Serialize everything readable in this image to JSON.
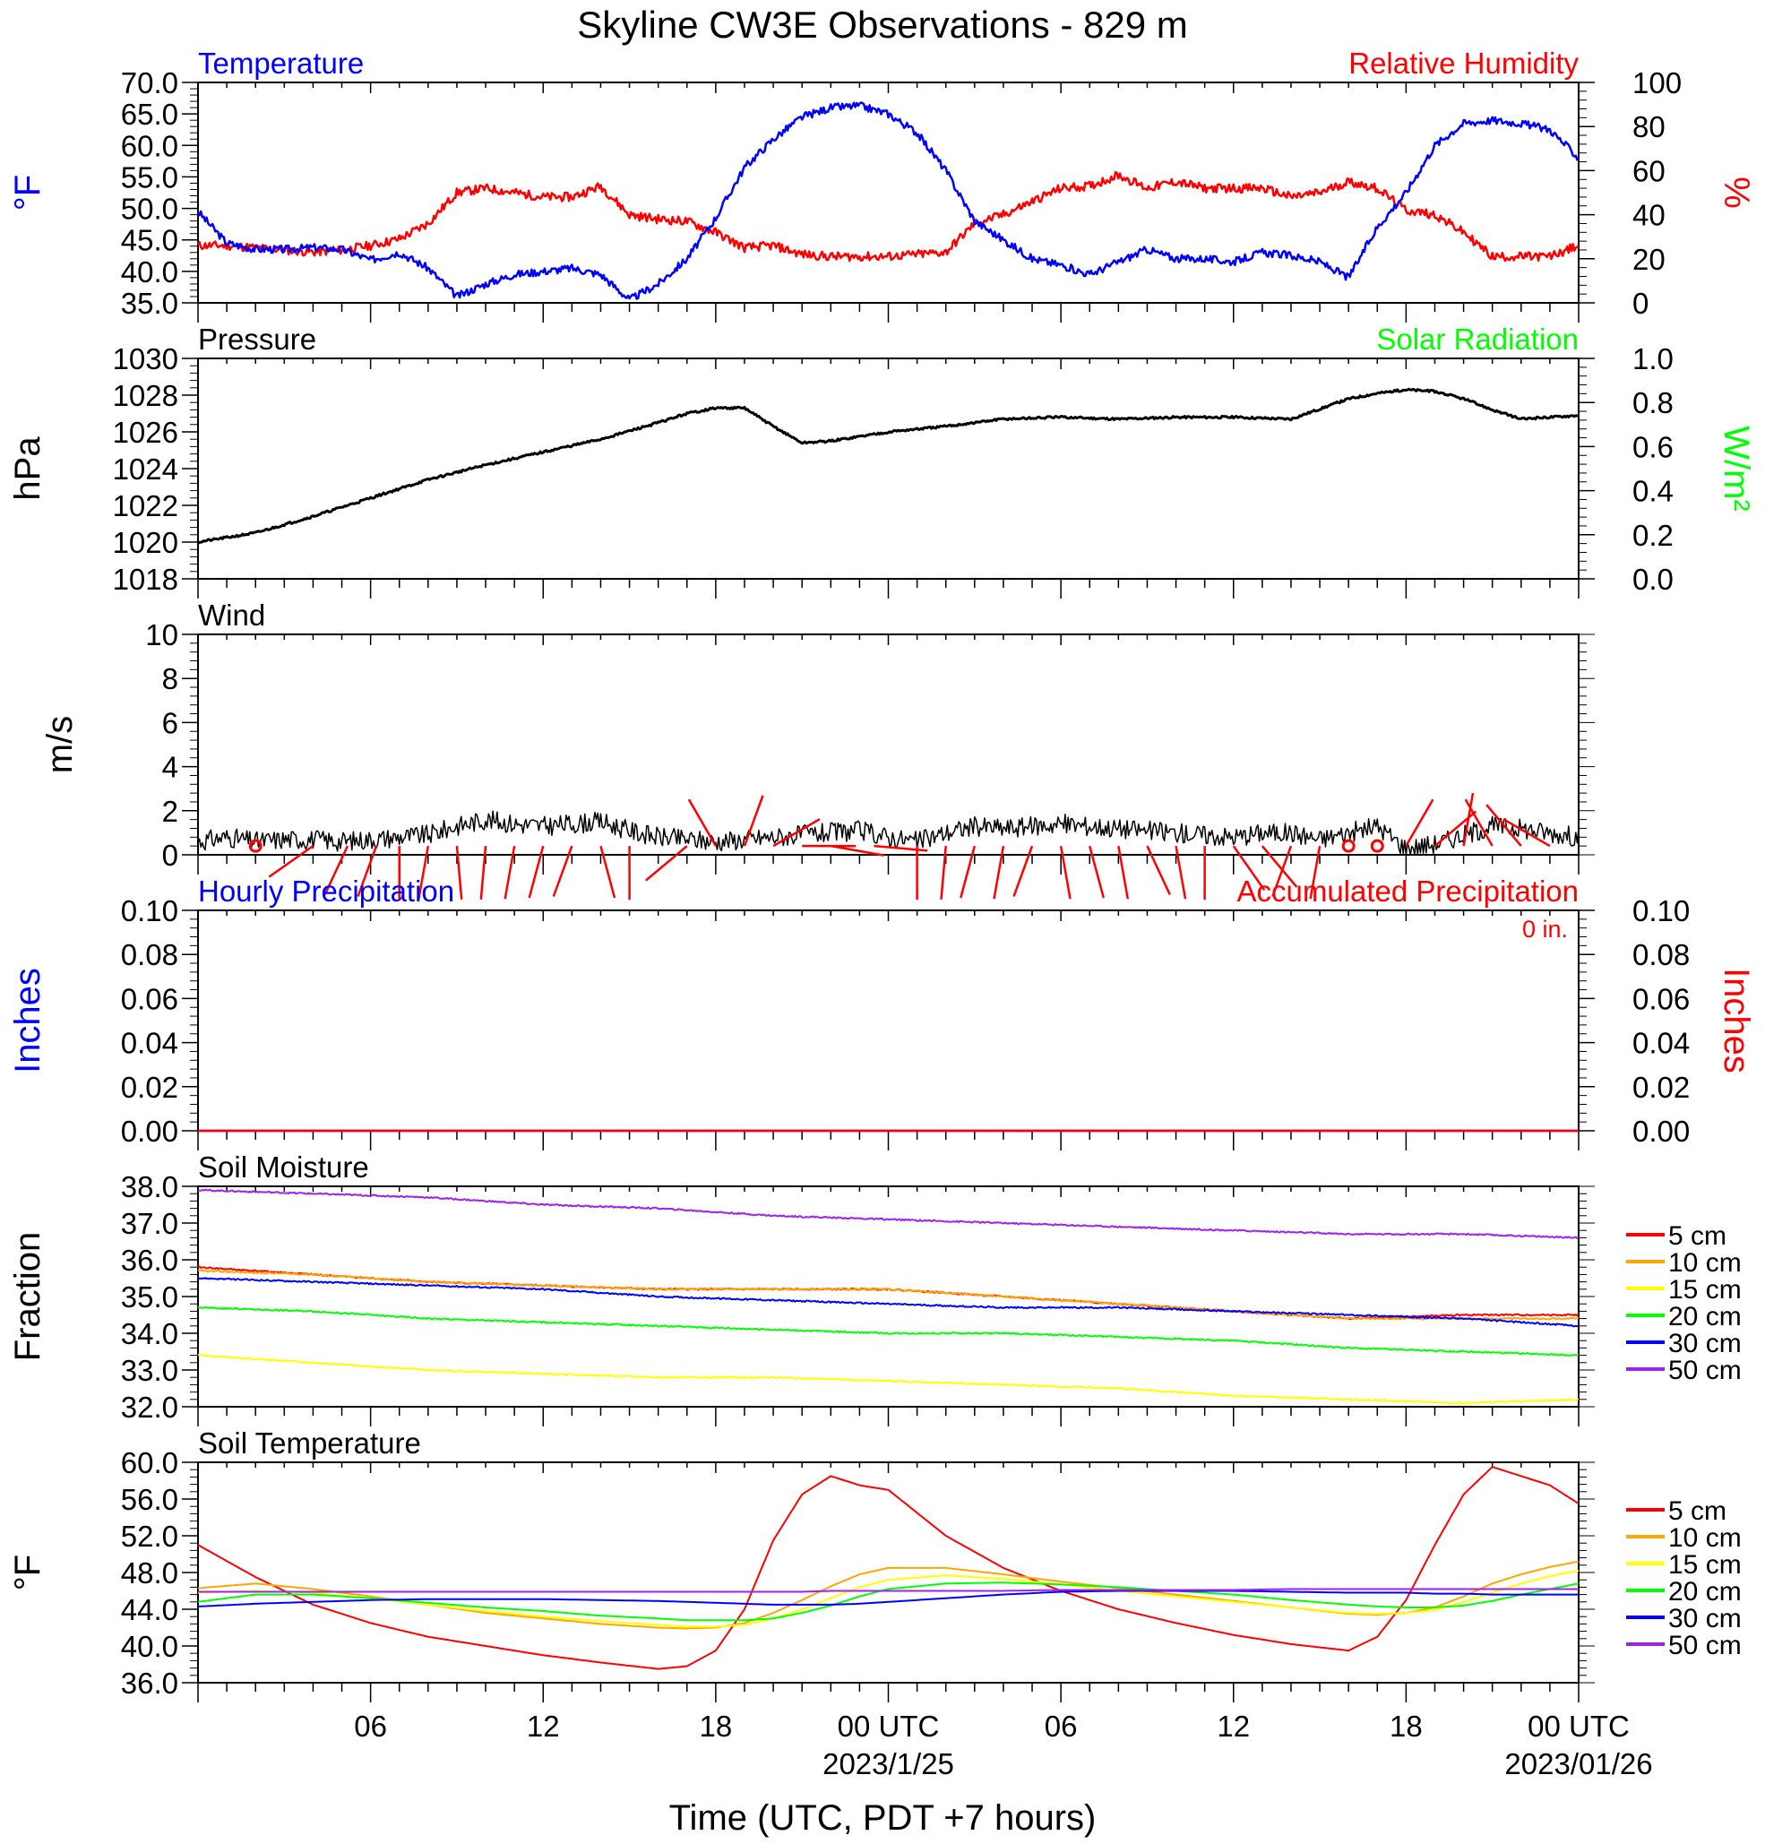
{
  "title": "Skyline CW3E Observations - 829 m",
  "xlabel": "Time (UTC, PDT +7 hours)",
  "x_ticks": [
    "06",
    "12",
    "18",
    "00 UTC",
    "06",
    "12",
    "18",
    "00 UTC"
  ],
  "x_dates": [
    "2023/1/25",
    "2023/01/26"
  ],
  "colors": {
    "temperature": "#0000ff",
    "humidity": "#ff0000",
    "pressure": "#000000",
    "solar": "#00ff00",
    "wind": "#000000",
    "barb": "#ff0000",
    "d5": "#ff0000",
    "d10": "#ffa500",
    "d15": "#ffff00",
    "d20": "#00ff00",
    "d30": "#0000ff",
    "d50": "#a020f0"
  },
  "chart_data": [
    {
      "type": "line",
      "panel": "temperature_humidity",
      "left_label": "Temperature",
      "right_label": "Relative Humidity",
      "left_unit": "°F",
      "right_unit": "%",
      "left_ticks": [
        "70.0",
        "65.0",
        "60.0",
        "55.0",
        "50.0",
        "45.0",
        "40.0",
        "35.0"
      ],
      "right_ticks": [
        "100",
        "80",
        "60",
        "40",
        "20",
        "0"
      ],
      "ylim_left": [
        35,
        70
      ],
      "ylim_right": [
        0,
        100
      ],
      "x_hours": [
        0,
        1,
        2,
        3,
        4,
        5,
        6,
        7,
        8,
        9,
        10,
        11,
        12,
        13,
        14,
        15,
        16,
        17,
        18,
        19,
        20,
        21,
        22,
        23,
        24,
        25,
        26,
        27,
        28,
        29,
        30,
        31,
        32,
        33,
        34,
        35,
        36,
        37,
        38,
        39,
        40,
        41,
        42,
        43,
        44,
        45,
        46,
        47,
        48
      ],
      "series": [
        {
          "name": "Temperature",
          "axis": "left",
          "color_key": "temperature",
          "values": [
            49.5,
            44.5,
            43.5,
            43.5,
            43.8,
            43.5,
            41.8,
            43.0,
            40.5,
            36.0,
            38.0,
            39.5,
            40.0,
            40.5,
            39.5,
            35.5,
            38.0,
            42.0,
            48.5,
            56.5,
            61.0,
            64.5,
            66.0,
            66.3,
            65.0,
            62.0,
            56.0,
            48.0,
            45.0,
            42.0,
            41.0,
            39.5,
            41.5,
            43.5,
            42.0,
            42.0,
            41.5,
            43.0,
            42.5,
            41.5,
            39.0,
            47.0,
            52.5,
            60.0,
            63.5,
            64.0,
            63.5,
            62.5,
            58.0
          ]
        },
        {
          "name": "Relative Humidity",
          "axis": "right",
          "color_key": "humidity",
          "values": [
            26,
            26,
            25,
            24,
            23,
            24,
            26,
            29,
            36,
            50,
            52,
            50,
            48,
            48,
            53,
            40,
            38,
            37,
            32,
            25,
            26,
            22,
            21,
            21,
            21,
            22,
            23,
            36,
            40,
            46,
            52,
            53,
            58,
            52,
            55,
            52,
            52,
            52,
            48,
            50,
            55,
            52,
            42,
            40,
            32,
            21,
            21,
            21,
            26
          ]
        }
      ]
    },
    {
      "type": "line",
      "panel": "pressure_solar",
      "left_label": "Pressure",
      "right_label": "Solar Radiation",
      "left_unit": "hPa",
      "right_unit": "W/m²",
      "left_ticks": [
        "1030",
        "1028",
        "1026",
        "1024",
        "1022",
        "1020",
        "1018"
      ],
      "right_ticks": [
        "1.0",
        "0.8",
        "0.6",
        "0.4",
        "0.2",
        "0.0"
      ],
      "ylim_left": [
        1018,
        1030
      ],
      "ylim_right": [
        0,
        1
      ],
      "x_hours": [
        0,
        2,
        4,
        6,
        8,
        10,
        12,
        14,
        16,
        17,
        18,
        19,
        20,
        21,
        22,
        24,
        26,
        28,
        30,
        32,
        34,
        36,
        38,
        40,
        41,
        42,
        43,
        44,
        45,
        46,
        47,
        48
      ],
      "series": [
        {
          "name": "Pressure",
          "axis": "left",
          "color_key": "pressure",
          "values": [
            1020.0,
            1020.5,
            1021.4,
            1022.4,
            1023.4,
            1024.2,
            1024.9,
            1025.6,
            1026.5,
            1027.0,
            1027.3,
            1027.3,
            1026.3,
            1025.4,
            1025.5,
            1026.0,
            1026.3,
            1026.7,
            1026.8,
            1026.7,
            1026.8,
            1026.8,
            1026.7,
            1027.8,
            1028.1,
            1028.3,
            1028.2,
            1027.8,
            1027.2,
            1026.7,
            1026.8,
            1026.9
          ]
        },
        {
          "name": "Solar Radiation",
          "axis": "right",
          "color_key": "solar",
          "values": []
        }
      ]
    },
    {
      "type": "line",
      "panel": "wind",
      "label": "Wind",
      "unit": "m/s",
      "ticks": [
        "10",
        "8",
        "6",
        "4",
        "2",
        "0"
      ],
      "ylim": [
        0,
        10
      ],
      "x_hours": [
        0,
        1,
        2,
        3,
        4,
        5,
        6,
        7,
        8,
        9,
        10,
        11,
        12,
        13,
        14,
        15,
        16,
        17,
        18,
        19,
        20,
        21,
        22,
        23,
        24,
        25,
        26,
        27,
        28,
        29,
        30,
        31,
        32,
        33,
        34,
        35,
        36,
        37,
        38,
        39,
        40,
        41,
        42,
        43,
        44,
        45,
        46,
        47,
        48
      ],
      "series": [
        {
          "name": "Wind speed",
          "color_key": "wind",
          "values": [
            0.6,
            0.8,
            0.6,
            0.7,
            0.7,
            0.6,
            0.7,
            0.8,
            0.9,
            1.3,
            1.6,
            1.4,
            1.3,
            1.4,
            1.5,
            1.1,
            0.8,
            0.7,
            0.6,
            0.7,
            0.8,
            0.9,
            1.0,
            1.1,
            0.8,
            0.6,
            1.0,
            1.3,
            1.2,
            1.3,
            1.4,
            1.3,
            1.2,
            1.1,
            1.0,
            0.9,
            0.8,
            1.0,
            1.0,
            0.7,
            1.0,
            1.3,
            0.3,
            0.5,
            0.9,
            1.3,
            1.2,
            1.0,
            0.8
          ]
        }
      ],
      "barbs": [
        {
          "hour": 2,
          "dir": 0,
          "calm": true
        },
        {
          "hour": 4.0,
          "dir": 235
        },
        {
          "hour": 5.2,
          "dir": 205
        },
        {
          "hour": 6.2,
          "dir": 200
        },
        {
          "hour": 7.0,
          "dir": 180
        },
        {
          "hour": 8.0,
          "dir": 190
        },
        {
          "hour": 9.0,
          "dir": 175
        },
        {
          "hour": 10.0,
          "dir": 185
        },
        {
          "hour": 11.0,
          "dir": 190
        },
        {
          "hour": 12.0,
          "dir": 195
        },
        {
          "hour": 13.0,
          "dir": 200
        },
        {
          "hour": 14.0,
          "dir": 165
        },
        {
          "hour": 15.0,
          "dir": 180
        },
        {
          "hour": 17.0,
          "dir": 230
        },
        {
          "hour": 18.0,
          "dir": 330
        },
        {
          "hour": 19.0,
          "dir": 20
        },
        {
          "hour": 20.0,
          "dir": 60
        },
        {
          "hour": 21.0,
          "dir": 90
        },
        {
          "hour": 22.0,
          "dir": 100
        },
        {
          "hour": 23.5,
          "dir": 95
        },
        {
          "hour": 25.0,
          "dir": 180
        },
        {
          "hour": 26.0,
          "dir": 185
        },
        {
          "hour": 27.0,
          "dir": 195
        },
        {
          "hour": 28.0,
          "dir": 190
        },
        {
          "hour": 29.0,
          "dir": 200
        },
        {
          "hour": 30.0,
          "dir": 170
        },
        {
          "hour": 31.0,
          "dir": 165
        },
        {
          "hour": 32.0,
          "dir": 170
        },
        {
          "hour": 33.0,
          "dir": 155
        },
        {
          "hour": 34.0,
          "dir": 170
        },
        {
          "hour": 35.0,
          "dir": 180
        },
        {
          "hour": 36.0,
          "dir": 145
        },
        {
          "hour": 37.0,
          "dir": 140
        },
        {
          "hour": 38.0,
          "dir": 200
        },
        {
          "hour": 39.0,
          "dir": 190
        },
        {
          "hour": 40,
          "dir": 0,
          "calm": true
        },
        {
          "hour": 41,
          "dir": 0,
          "calm": true
        },
        {
          "hour": 42.0,
          "dir": 30
        },
        {
          "hour": 43.0,
          "dir": 50
        },
        {
          "hour": 44.0,
          "dir": 10
        },
        {
          "hour": 45.0,
          "dir": 330
        },
        {
          "hour": 46.0,
          "dir": 320
        },
        {
          "hour": 47.0,
          "dir": 300
        }
      ]
    },
    {
      "type": "line",
      "panel": "precipitation",
      "left_label": "Hourly Precipitation",
      "right_label": "Accumulated Precipitation",
      "total_text": "0 in.",
      "left_unit": "Inches",
      "right_unit": "Inches",
      "left_ticks": [
        "0.10",
        "0.08",
        "0.06",
        "0.04",
        "0.02",
        "0.00"
      ],
      "right_ticks": [
        "0.10",
        "0.08",
        "0.06",
        "0.04",
        "0.02",
        "0.00"
      ],
      "ylim_left": [
        0,
        0.1
      ],
      "ylim_right": [
        0,
        0.1
      ],
      "x_hours": [
        0,
        48
      ],
      "series": [
        {
          "name": "Hourly Precipitation",
          "axis": "left",
          "color_key": "temperature",
          "values": [
            0,
            0
          ]
        },
        {
          "name": "Accumulated Precipitation",
          "axis": "right",
          "color_key": "humidity",
          "values": [
            0,
            0
          ]
        }
      ]
    },
    {
      "type": "line",
      "panel": "soil_moisture",
      "label": "Soil Moisture",
      "unit": "Fraction",
      "ticks": [
        "38.0",
        "37.0",
        "36.0",
        "35.0",
        "34.0",
        "33.0",
        "32.0"
      ],
      "ylim": [
        32,
        38
      ],
      "x_hours": [
        0,
        4,
        8,
        12,
        16,
        20,
        24,
        28,
        32,
        36,
        40,
        44,
        48
      ],
      "series": [
        {
          "name": "5 cm",
          "color_key": "d5",
          "values": [
            35.8,
            35.6,
            35.4,
            35.3,
            35.2,
            35.2,
            35.2,
            35.0,
            34.8,
            34.6,
            34.4,
            34.5,
            34.5
          ]
        },
        {
          "name": "10 cm",
          "color_key": "d10",
          "values": [
            35.7,
            35.6,
            35.4,
            35.3,
            35.2,
            35.2,
            35.2,
            35.0,
            34.8,
            34.6,
            34.4,
            34.4,
            34.4
          ]
        },
        {
          "name": "15 cm",
          "color_key": "d15",
          "values": [
            33.4,
            33.2,
            33.0,
            32.9,
            32.8,
            32.8,
            32.7,
            32.6,
            32.5,
            32.3,
            32.2,
            32.1,
            32.2
          ]
        },
        {
          "name": "20 cm",
          "color_key": "d20",
          "values": [
            34.7,
            34.6,
            34.4,
            34.3,
            34.2,
            34.1,
            34.0,
            34.0,
            33.9,
            33.8,
            33.6,
            33.5,
            33.4
          ]
        },
        {
          "name": "30 cm",
          "color_key": "d30",
          "values": [
            35.5,
            35.4,
            35.3,
            35.2,
            35.0,
            34.9,
            34.8,
            34.7,
            34.7,
            34.6,
            34.5,
            34.4,
            34.2
          ]
        },
        {
          "name": "50 cm",
          "color_key": "d50",
          "values": [
            37.9,
            37.8,
            37.7,
            37.5,
            37.4,
            37.2,
            37.1,
            37.0,
            36.9,
            36.8,
            36.7,
            36.7,
            36.6
          ]
        }
      ]
    },
    {
      "type": "line",
      "panel": "soil_temperature",
      "label": "Soil Temperature",
      "unit": "°F",
      "ticks": [
        "60.0",
        "56.0",
        "52.0",
        "48.0",
        "44.0",
        "40.0",
        "36.0"
      ],
      "ylim": [
        36,
        60
      ],
      "x_hours": [
        0,
        2,
        4,
        6,
        8,
        10,
        12,
        14,
        16,
        17,
        18,
        19,
        20,
        21,
        22,
        23,
        24,
        26,
        28,
        30,
        32,
        34,
        36,
        38,
        40,
        41,
        42,
        43,
        44,
        45,
        46,
        47,
        48
      ],
      "series": [
        {
          "name": "5 cm",
          "color_key": "d5",
          "values": [
            51.0,
            47.5,
            44.5,
            42.5,
            41.0,
            40.0,
            39.0,
            38.2,
            37.5,
            37.8,
            39.5,
            44.0,
            51.5,
            56.5,
            58.5,
            57.5,
            57.0,
            52.0,
            48.5,
            46.0,
            44.0,
            42.5,
            41.2,
            40.2,
            39.5,
            41.0,
            45.0,
            51.0,
            56.5,
            59.5,
            58.5,
            57.5,
            55.5
          ]
        },
        {
          "name": "10 cm",
          "color_key": "d10",
          "values": [
            46.3,
            46.8,
            46.2,
            45.4,
            44.5,
            43.6,
            43.0,
            42.4,
            42.0,
            41.9,
            42.0,
            42.5,
            43.6,
            45.0,
            46.5,
            47.8,
            48.5,
            48.5,
            47.8,
            47.0,
            46.3,
            45.6,
            44.9,
            44.2,
            43.5,
            43.4,
            43.6,
            44.2,
            45.4,
            46.8,
            47.8,
            48.6,
            49.2
          ]
        },
        {
          "name": "15 cm",
          "color_key": "d15",
          "values": [
            45.8,
            46.0,
            45.8,
            45.2,
            44.5,
            43.8,
            43.2,
            42.7,
            42.3,
            42.1,
            42.1,
            42.3,
            43.0,
            44.0,
            45.2,
            46.4,
            47.2,
            47.7,
            47.3,
            46.7,
            46.0,
            45.4,
            44.8,
            44.2,
            43.6,
            43.5,
            43.6,
            43.9,
            44.8,
            45.8,
            46.8,
            47.6,
            48.2
          ]
        },
        {
          "name": "20 cm",
          "color_key": "d20",
          "values": [
            44.8,
            45.6,
            45.6,
            45.2,
            44.7,
            44.2,
            43.8,
            43.3,
            43.0,
            42.8,
            42.8,
            42.8,
            43.0,
            43.6,
            44.4,
            45.4,
            46.2,
            46.8,
            46.9,
            46.7,
            46.4,
            46.0,
            45.6,
            45.0,
            44.5,
            44.3,
            44.2,
            44.2,
            44.4,
            44.9,
            45.6,
            46.2,
            46.8
          ]
        },
        {
          "name": "30 cm",
          "color_key": "d30",
          "values": [
            44.3,
            44.6,
            44.8,
            45.0,
            45.1,
            45.1,
            45.1,
            45.0,
            44.9,
            44.8,
            44.7,
            44.6,
            44.5,
            44.5,
            44.5,
            44.6,
            44.8,
            45.2,
            45.6,
            45.9,
            46.0,
            46.0,
            46.0,
            45.9,
            45.8,
            45.8,
            45.8,
            45.7,
            45.7,
            45.6,
            45.6,
            45.6,
            45.6
          ]
        },
        {
          "name": "50 cm",
          "color_key": "d50",
          "values": [
            45.9,
            45.9,
            45.9,
            45.9,
            45.9,
            45.9,
            45.9,
            45.9,
            45.9,
            45.9,
            45.9,
            45.9,
            45.9,
            45.9,
            46.0,
            46.0,
            46.0,
            46.0,
            46.0,
            46.1,
            46.1,
            46.1,
            46.1,
            46.2,
            46.2,
            46.2,
            46.2,
            46.2,
            46.2,
            46.2,
            46.2,
            46.2,
            46.2
          ]
        }
      ]
    }
  ]
}
